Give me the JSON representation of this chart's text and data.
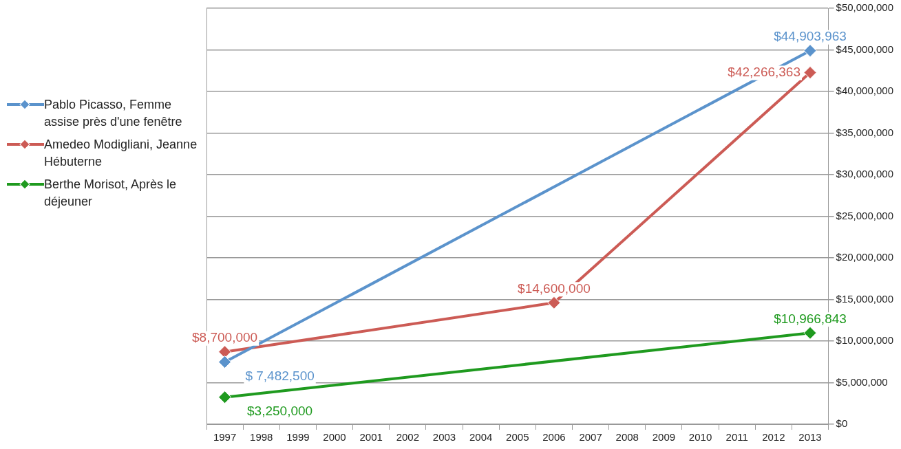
{
  "chart_data": {
    "type": "line",
    "categories": [
      "1997",
      "1998",
      "1999",
      "2000",
      "2001",
      "2002",
      "2003",
      "2004",
      "2005",
      "2006",
      "2007",
      "2008",
      "2009",
      "2010",
      "2011",
      "2012",
      "2013"
    ],
    "series": [
      {
        "name": "Pablo Picasso, Femme assise près d'une fenêtre",
        "color": "#5b93cc",
        "values": [
          7482500,
          null,
          null,
          null,
          null,
          null,
          null,
          null,
          null,
          null,
          null,
          null,
          null,
          null,
          null,
          null,
          44903963
        ],
        "value_labels": [
          "$ 7,482,500",
          null,
          null,
          null,
          null,
          null,
          null,
          null,
          null,
          null,
          null,
          null,
          null,
          null,
          null,
          null,
          "$44,903,963"
        ]
      },
      {
        "name": "Amedeo Modigliani, Jeanne Hébuterne",
        "color": "#cc5b55",
        "values": [
          8700000,
          null,
          null,
          null,
          null,
          null,
          null,
          null,
          null,
          14600000,
          null,
          null,
          null,
          null,
          null,
          null,
          42266363
        ],
        "value_labels": [
          "$8,700,000",
          null,
          null,
          null,
          null,
          null,
          null,
          null,
          null,
          "$14,600,000",
          null,
          null,
          null,
          null,
          null,
          null,
          "$42,266,363"
        ]
      },
      {
        "name": "Berthe Morisot, Après le déjeuner",
        "color": "#1f9a1f",
        "values": [
          3250000,
          null,
          null,
          null,
          null,
          null,
          null,
          null,
          null,
          null,
          null,
          null,
          null,
          null,
          null,
          null,
          10966843
        ],
        "value_labels": [
          "$3,250,000",
          null,
          null,
          null,
          null,
          null,
          null,
          null,
          null,
          null,
          null,
          null,
          null,
          null,
          null,
          null,
          "$10,966,843"
        ]
      }
    ],
    "ylim": [
      0,
      50000000
    ],
    "yticks": [
      {
        "value": 0,
        "label": "$0"
      },
      {
        "value": 5000000,
        "label": "$5,000,000"
      },
      {
        "value": 10000000,
        "label": "$10,000,000"
      },
      {
        "value": 15000000,
        "label": "$15,000,000"
      },
      {
        "value": 20000000,
        "label": "$20,000,000"
      },
      {
        "value": 25000000,
        "label": "$25,000,000"
      },
      {
        "value": 30000000,
        "label": "$30,000,000"
      },
      {
        "value": 35000000,
        "label": "$35,000,000"
      },
      {
        "value": 40000000,
        "label": "$40,000,000"
      },
      {
        "value": 45000000,
        "label": "$45,000,000"
      },
      {
        "value": 50000000,
        "label": "$50,000,000"
      }
    ],
    "grid": "y",
    "legend": "left",
    "marker": "diamond",
    "line_style": "solid"
  }
}
